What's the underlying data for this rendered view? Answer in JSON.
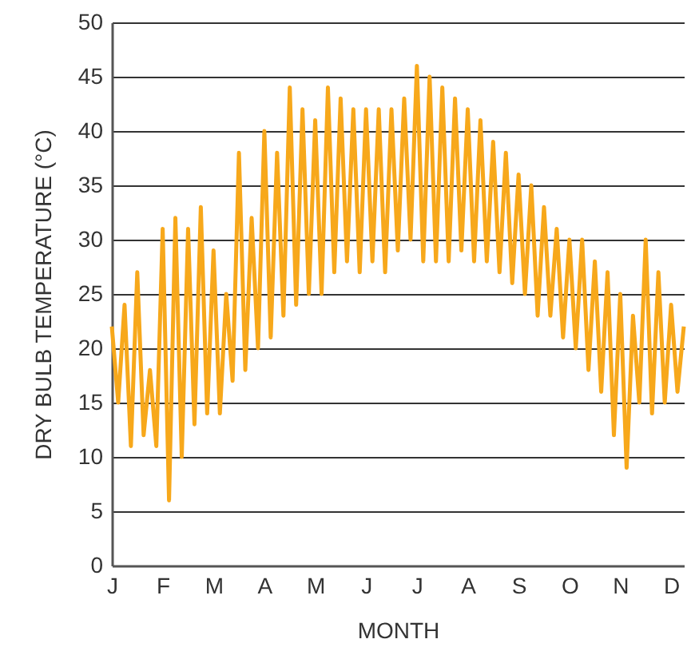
{
  "chart_data": {
    "type": "line",
    "xlabel": "MONTH",
    "ylabel": "DRY BULB TEMPERATURE (°C)",
    "categories": [
      "J",
      null,
      null,
      null,
      null,
      null,
      null,
      null,
      "F",
      null,
      null,
      null,
      null,
      null,
      null,
      null,
      "M",
      null,
      null,
      null,
      null,
      null,
      null,
      null,
      "A",
      null,
      null,
      null,
      null,
      null,
      null,
      null,
      "M",
      null,
      null,
      null,
      null,
      null,
      null,
      null,
      "J",
      null,
      null,
      null,
      null,
      null,
      null,
      null,
      "J",
      null,
      null,
      null,
      null,
      null,
      null,
      null,
      "A",
      null,
      null,
      null,
      null,
      null,
      null,
      null,
      "S",
      null,
      null,
      null,
      null,
      null,
      null,
      null,
      "O",
      null,
      null,
      null,
      null,
      null,
      null,
      null,
      "N",
      null,
      null,
      null,
      null,
      null,
      null,
      null,
      "D",
      null,
      null
    ],
    "ylim": [
      0,
      50
    ],
    "yticks": [
      0,
      5,
      10,
      15,
      20,
      25,
      30,
      35,
      40,
      45,
      50
    ],
    "grid": "y",
    "line_style": "solid",
    "series": [
      {
        "color": "#f7a81b",
        "values": [
          22,
          15,
          24,
          11,
          27,
          12,
          18,
          11,
          31,
          6,
          32,
          10,
          31,
          13,
          33,
          14,
          29,
          14,
          25,
          17,
          38,
          18,
          32,
          20,
          40,
          21,
          38,
          23,
          44,
          24,
          42,
          25,
          41,
          25,
          44,
          27,
          43,
          28,
          42,
          27,
          42,
          28,
          42,
          27,
          42,
          29,
          43,
          30,
          46,
          28,
          45,
          28,
          44,
          28,
          43,
          29,
          42,
          28,
          41,
          28,
          39,
          27,
          38,
          26,
          36,
          25,
          35,
          23,
          33,
          23,
          31,
          21,
          30,
          20,
          30,
          18,
          28,
          16,
          27,
          12,
          25,
          9,
          23,
          15,
          30,
          14,
          27,
          15,
          24,
          16,
          22
        ]
      }
    ]
  }
}
